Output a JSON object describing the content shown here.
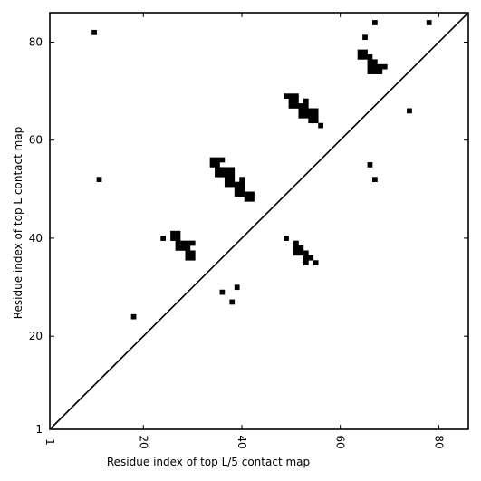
{
  "chart_data": {
    "type": "heatmap",
    "xlabel": "Residue index of top L/5 contact map",
    "ylabel": "Residue index of top L contact map",
    "xlim": [
      1,
      86
    ],
    "ylim": [
      1,
      86
    ],
    "xticks": [
      {
        "value": 1,
        "label": "1"
      },
      {
        "value": 20,
        "label": "20"
      },
      {
        "value": 40,
        "label": "40"
      },
      {
        "value": 60,
        "label": "60"
      },
      {
        "value": 80,
        "label": "80"
      }
    ],
    "yticks": [
      {
        "value": 1,
        "label": "1"
      },
      {
        "value": 20,
        "label": "20"
      },
      {
        "value": 40,
        "label": "40"
      },
      {
        "value": 60,
        "label": "60"
      },
      {
        "value": 80,
        "label": "80"
      }
    ],
    "diagonal_line": [
      [
        1,
        1
      ],
      [
        86,
        86
      ]
    ],
    "cell_color": "#000000",
    "contacts": [
      [
        10,
        82
      ],
      [
        11,
        52
      ],
      [
        18,
        24
      ],
      [
        24,
        40
      ],
      [
        26,
        41
      ],
      [
        27,
        41
      ],
      [
        26,
        40
      ],
      [
        27,
        40
      ],
      [
        27,
        39
      ],
      [
        28,
        39
      ],
      [
        29,
        39
      ],
      [
        30,
        39
      ],
      [
        27,
        38
      ],
      [
        28,
        38
      ],
      [
        29,
        38
      ],
      [
        29,
        37
      ],
      [
        29,
        36
      ],
      [
        30,
        37
      ],
      [
        30,
        36
      ],
      [
        34,
        56
      ],
      [
        35,
        56
      ],
      [
        36,
        56
      ],
      [
        34,
        55
      ],
      [
        35,
        55
      ],
      [
        35,
        54
      ],
      [
        36,
        54
      ],
      [
        37,
        54
      ],
      [
        38,
        54
      ],
      [
        35,
        53
      ],
      [
        36,
        53
      ],
      [
        37,
        53
      ],
      [
        38,
        53
      ],
      [
        37,
        52
      ],
      [
        38,
        52
      ],
      [
        40,
        52
      ],
      [
        37,
        51
      ],
      [
        38,
        51
      ],
      [
        39,
        51
      ],
      [
        40,
        51
      ],
      [
        39,
        50
      ],
      [
        40,
        50
      ],
      [
        39,
        49
      ],
      [
        40,
        49
      ],
      [
        41,
        49
      ],
      [
        42,
        49
      ],
      [
        41,
        48
      ],
      [
        42,
        48
      ],
      [
        36,
        29
      ],
      [
        38,
        27
      ],
      [
        39,
        30
      ],
      [
        49,
        69
      ],
      [
        50,
        69
      ],
      [
        51,
        69
      ],
      [
        50,
        68
      ],
      [
        51,
        68
      ],
      [
        50,
        67
      ],
      [
        51,
        67
      ],
      [
        53,
        68
      ],
      [
        52,
        67
      ],
      [
        53,
        67
      ],
      [
        52,
        66
      ],
      [
        53,
        66
      ],
      [
        54,
        66
      ],
      [
        55,
        66
      ],
      [
        52,
        65
      ],
      [
        53,
        65
      ],
      [
        54,
        65
      ],
      [
        55,
        65
      ],
      [
        54,
        64
      ],
      [
        55,
        64
      ],
      [
        56,
        63
      ],
      [
        49,
        40
      ],
      [
        51,
        39
      ],
      [
        51,
        38
      ],
      [
        52,
        38
      ],
      [
        51,
        37
      ],
      [
        52,
        37
      ],
      [
        53,
        37
      ],
      [
        53,
        36
      ],
      [
        54,
        36
      ],
      [
        53,
        35
      ],
      [
        55,
        35
      ],
      [
        65,
        81
      ],
      [
        64,
        78
      ],
      [
        65,
        78
      ],
      [
        64,
        77
      ],
      [
        65,
        77
      ],
      [
        66,
        77
      ],
      [
        66,
        76
      ],
      [
        67,
        76
      ],
      [
        66,
        75
      ],
      [
        67,
        75
      ],
      [
        68,
        75
      ],
      [
        69,
        75
      ],
      [
        66,
        74
      ],
      [
        67,
        74
      ],
      [
        68,
        74
      ],
      [
        67,
        84
      ],
      [
        78,
        84
      ],
      [
        74,
        66
      ],
      [
        66,
        55
      ],
      [
        67,
        52
      ]
    ]
  }
}
